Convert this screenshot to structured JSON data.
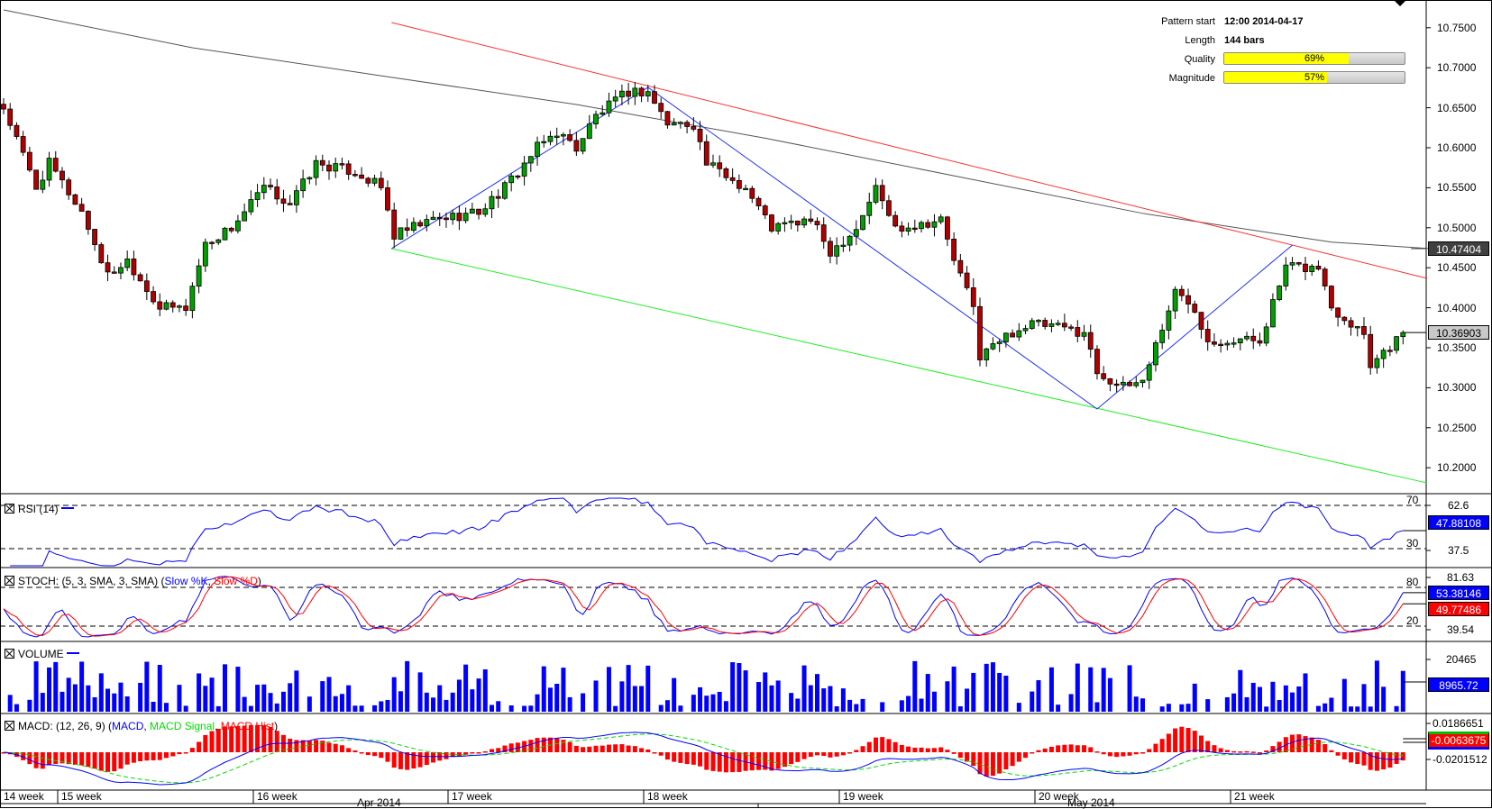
{
  "pattern_info": {
    "pattern_start_label": "Pattern start",
    "pattern_start_value": "12:00 2014-04-17",
    "length_label": "Length",
    "length_value": "144 bars",
    "quality_label": "Quality",
    "quality_value": "69%",
    "quality_fraction": 0.69,
    "magnitude_label": "Magnitude",
    "magnitude_value": "57%",
    "magnitude_fraction": 0.57
  },
  "price_axis": {
    "ticks": [
      "10.7500",
      "10.7000",
      "10.6500",
      "10.6000",
      "10.5500",
      "10.5000",
      "10.4500",
      "10.4000",
      "10.3500",
      "10.3000",
      "10.2500",
      "10.2000"
    ],
    "ma_value": "10.47404",
    "last_value": "10.36903"
  },
  "rsi": {
    "title": "RSI (14)",
    "level_high": "70",
    "level_low": "30",
    "tick_high": "62.6",
    "tick_low": "37.5",
    "value": "47.88108"
  },
  "stoch": {
    "title": "STOCH: (5, 3, SMA, 3, SMA)",
    "open_paren": "(",
    "k_label": "Slow %K",
    "sep": ", ",
    "d_label": "Slow %D",
    "close_paren": ")",
    "level_high": "80",
    "level_low": "20",
    "tick_high": "81.63",
    "tick_low": "39.54",
    "k_value": "53.38146",
    "d_value": "49.77486"
  },
  "volume": {
    "title": "VOLUME",
    "tick": "20465",
    "value": "8965.72"
  },
  "macd": {
    "title": "MACD: (12, 26, 9) (",
    "macd_label": "MACD",
    "sep1": ", ",
    "signal_label": "MACD Signal",
    "sep2": ", ",
    "hist_label": "MACD Hist",
    "close_paren": ")",
    "tick_high": "0.0186651",
    "tick_low": "-0.0201512",
    "value": "-0.0063675"
  },
  "time_axis": {
    "weeks": [
      "14 week",
      "15 week",
      "16 week",
      "17 week",
      "18 week",
      "19 week",
      "20 week",
      "21 week"
    ],
    "months": [
      "Apr 2014",
      "May 2014"
    ]
  },
  "colors": {
    "bull": "#00a000",
    "bear": "#b00000",
    "resistance": "#ff3030",
    "support": "#22ee22",
    "zigzag": "#2030ff",
    "ma": "#555555",
    "rsi": "#0000ff",
    "stoch_k": "#0000ff",
    "stoch_d": "#ff0000",
    "volume": "#0000ff",
    "macd": "#0000ff",
    "signal": "#00dd00",
    "hist": "#ff0000"
  },
  "chart_data": {
    "type": "candlestick",
    "timeframe_bars": 216,
    "last_price": 10.36903,
    "ylim": [
      10.18,
      10.78
    ],
    "price_keypoints": [
      [
        0,
        10.65
      ],
      [
        5,
        10.55
      ],
      [
        7,
        10.58
      ],
      [
        12,
        10.52
      ],
      [
        16,
        10.44
      ],
      [
        19,
        10.46
      ],
      [
        24,
        10.4
      ],
      [
        28,
        10.4
      ],
      [
        31,
        10.48
      ],
      [
        35,
        10.5
      ],
      [
        40,
        10.55
      ],
      [
        44,
        10.53
      ],
      [
        48,
        10.58
      ],
      [
        54,
        10.57
      ],
      [
        58,
        10.55
      ],
      [
        60,
        10.49
      ],
      [
        66,
        10.51
      ],
      [
        73,
        10.52
      ],
      [
        77,
        10.55
      ],
      [
        82,
        10.6
      ],
      [
        85,
        10.62
      ],
      [
        88,
        10.6
      ],
      [
        91,
        10.64
      ],
      [
        96,
        10.67
      ],
      [
        99,
        10.67
      ],
      [
        102,
        10.63
      ],
      [
        106,
        10.63
      ],
      [
        108,
        10.58
      ],
      [
        114,
        10.55
      ],
      [
        118,
        10.5
      ],
      [
        124,
        10.51
      ],
      [
        127,
        10.47
      ],
      [
        131,
        10.5
      ],
      [
        134,
        10.55
      ],
      [
        137,
        10.5
      ],
      [
        144,
        10.51
      ],
      [
        146,
        10.46
      ],
      [
        149,
        10.4
      ],
      [
        150,
        10.34
      ],
      [
        155,
        10.37
      ],
      [
        158,
        10.38
      ],
      [
        166,
        10.37
      ],
      [
        168,
        10.32
      ],
      [
        172,
        10.3
      ],
      [
        175,
        10.31
      ],
      [
        180,
        10.42
      ],
      [
        183,
        10.4
      ],
      [
        185,
        10.36
      ],
      [
        190,
        10.36
      ],
      [
        193,
        10.36
      ],
      [
        197,
        10.45
      ],
      [
        202,
        10.45
      ],
      [
        204,
        10.4
      ],
      [
        209,
        10.37
      ],
      [
        210,
        10.33
      ],
      [
        215,
        10.36903
      ]
    ],
    "resistance_line": [
      [
        59.6,
        10.7565
      ],
      [
        218.7,
        10.4367
      ]
    ],
    "support_line": [
      [
        59.6,
        10.4739
      ],
      [
        218.7,
        10.181
      ]
    ],
    "zigzag": [
      [
        59.6,
        10.4739
      ],
      [
        99,
        10.6755
      ],
      [
        168,
        10.2734
      ],
      [
        198,
        10.4784
      ]
    ],
    "moving_average": [
      [
        0,
        10.7723
      ],
      [
        29,
        10.725
      ],
      [
        58,
        10.69
      ],
      [
        88,
        10.654
      ],
      [
        117,
        10.612
      ],
      [
        146,
        10.565
      ],
      [
        175,
        10.518
      ],
      [
        204,
        10.482
      ],
      [
        219,
        10.47404
      ]
    ]
  }
}
